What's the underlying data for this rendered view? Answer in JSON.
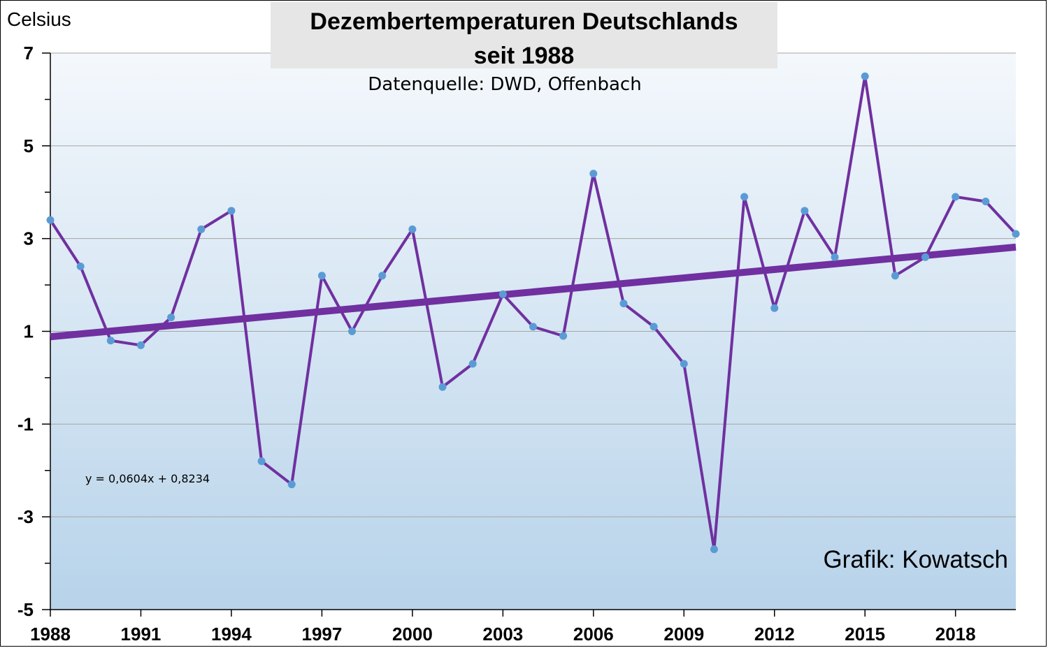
{
  "chart_data": {
    "type": "line",
    "title": "Dezembertemperaturen Deutschlands seit 1988",
    "title_lines": [
      "Dezembertemperaturen Deutschlands",
      "seit 1988"
    ],
    "subtitle": "Datenquelle: DWD, Offenbach",
    "ylabel": "Celsius",
    "xlabel": "",
    "credit": "Grafik: Kowatsch",
    "equation": "y = 0,0604x + 0,8234",
    "x": [
      1988,
      1989,
      1990,
      1991,
      1992,
      1993,
      1994,
      1995,
      1996,
      1997,
      1998,
      1999,
      2000,
      2001,
      2002,
      2003,
      2004,
      2005,
      2006,
      2007,
      2008,
      2009,
      2010,
      2011,
      2012,
      2013,
      2014,
      2015,
      2016,
      2017,
      2018,
      2019,
      2020
    ],
    "series": [
      {
        "values": [
          3.4,
          2.4,
          0.8,
          0.7,
          1.3,
          3.2,
          3.6,
          -1.8,
          -2.3,
          2.2,
          1.0,
          2.2,
          3.2,
          -0.2,
          0.3,
          1.8,
          1.1,
          0.9,
          4.4,
          1.6,
          1.1,
          0.3,
          -3.7,
          3.9,
          1.5,
          3.6,
          2.6,
          6.5,
          2.2,
          2.6,
          3.9,
          3.8,
          3.1
        ],
        "color": "#7030a0",
        "marker_color": "#5b9bd5"
      }
    ],
    "trendline": {
      "slope": 0.0604,
      "intercept": 0.8234,
      "color": "#7030a0"
    },
    "ylim": [
      -5,
      7
    ],
    "xlim": [
      1988,
      2020
    ],
    "y_tick_labels": [
      "7",
      "5",
      "3",
      "1",
      "-1",
      "-3",
      "-5"
    ],
    "x_tick_labels": [
      "1988",
      "1991",
      "1994",
      "1997",
      "2000",
      "2003",
      "2006",
      "2009",
      "2012",
      "2015",
      "2018"
    ],
    "grid": true,
    "background_gradient": [
      "#f4f8fc",
      "#b7d3ea"
    ]
  }
}
